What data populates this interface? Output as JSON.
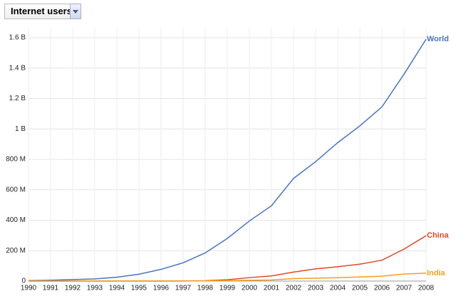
{
  "chart_data": {
    "type": "line",
    "title": "Internet users",
    "x": [
      1990,
      1991,
      1992,
      1993,
      1994,
      1995,
      1996,
      1997,
      1998,
      1999,
      2000,
      2001,
      2002,
      2003,
      2004,
      2005,
      2006,
      2007,
      2008
    ],
    "xlim": [
      1990,
      2008
    ],
    "xticks": [
      1990,
      1991,
      1992,
      1993,
      1994,
      1995,
      1996,
      1997,
      1998,
      1999,
      2000,
      2001,
      2002,
      2003,
      2004,
      2005,
      2006,
      2007,
      2008
    ],
    "ylim": [
      0,
      1600000000
    ],
    "yticks": [
      0,
      {
        "value": 200000000,
        "label": "200 M"
      },
      {
        "value": 400000000,
        "label": "400 M"
      },
      {
        "value": 600000000,
        "label": "600 M"
      },
      {
        "value": 800000000,
        "label": "800 M"
      },
      {
        "value": 1000000000,
        "label": "1 B"
      },
      {
        "value": 1200000000,
        "label": "1.2 B"
      },
      {
        "value": 1400000000,
        "label": "1.4 B"
      },
      {
        "value": 1600000000,
        "label": "1.6 B"
      }
    ],
    "grid": true,
    "series": [
      {
        "name": "World",
        "color": "#4a72c0",
        "values": [
          3000000,
          5000000,
          10000000,
          14000000,
          25000000,
          45000000,
          77000000,
          120000000,
          185000000,
          280000000,
          395000000,
          495000000,
          675000000,
          785000000,
          910000000,
          1020000000,
          1145000000,
          1360000000,
          1590000000
        ]
      },
      {
        "name": "China",
        "color": "#dc4a26",
        "values": [
          0,
          0,
          0,
          0,
          0,
          60000,
          160000,
          400000,
          2100000,
          8900000,
          22500000,
          33700000,
          59000000,
          80000000,
          94000000,
          111000000,
          137000000,
          210000000,
          298000000
        ]
      },
      {
        "name": "India",
        "color": "#f3a01e",
        "values": [
          0,
          0,
          0,
          0,
          0,
          250000,
          450000,
          700000,
          1400000,
          2800000,
          5500000,
          7000000,
          16600000,
          18500000,
          22500000,
          27000000,
          32000000,
          46000000,
          52000000
        ]
      }
    ]
  }
}
